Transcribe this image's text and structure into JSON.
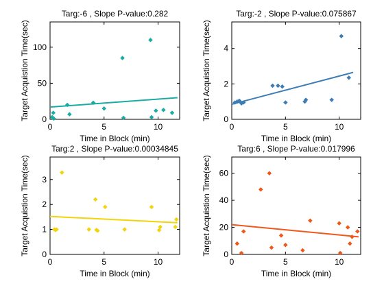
{
  "chart_data": [
    {
      "type": "scatter",
      "title": "Targ:-6 , Slope P-value:0.282",
      "xlabel": "Time in Block (min)",
      "ylabel": "Target Acquistion Time(sec)",
      "xlim": [
        0,
        12
      ],
      "ylim": [
        0,
        135
      ],
      "xticks": [
        0,
        5,
        10
      ],
      "yticks": [
        0,
        50,
        100
      ],
      "color": "#1aaba3",
      "marker": "diamond",
      "points": [
        {
          "x": 0.2,
          "y": 3
        },
        {
          "x": 0.3,
          "y": 9
        },
        {
          "x": 0.35,
          "y": 1
        },
        {
          "x": 1.6,
          "y": 20
        },
        {
          "x": 1.8,
          "y": 7
        },
        {
          "x": 4.0,
          "y": 23
        },
        {
          "x": 5.0,
          "y": 15
        },
        {
          "x": 6.7,
          "y": 85
        },
        {
          "x": 6.8,
          "y": 2
        },
        {
          "x": 9.3,
          "y": 110
        },
        {
          "x": 9.4,
          "y": 3
        },
        {
          "x": 9.8,
          "y": 12
        },
        {
          "x": 10.5,
          "y": 13
        },
        {
          "x": 11.3,
          "y": 9
        }
      ],
      "fit": {
        "x": [
          0,
          11.8
        ],
        "y": [
          17,
          30
        ]
      }
    },
    {
      "type": "scatter",
      "title": "Targ:-2 , Slope P-value:0.075867",
      "xlabel": "Time in Block (min)",
      "ylabel": "Target Acquistion Time(sec)",
      "xlim": [
        0,
        12
      ],
      "ylim": [
        0,
        5.5
      ],
      "xticks": [
        0,
        5,
        10
      ],
      "yticks": [
        0,
        2,
        4
      ],
      "color": "#3d7db4",
      "marker": "diamond",
      "points": [
        {
          "x": 0.3,
          "y": 0.95
        },
        {
          "x": 0.5,
          "y": 1.0
        },
        {
          "x": 0.7,
          "y": 1.05
        },
        {
          "x": 0.9,
          "y": 0.9
        },
        {
          "x": 1.1,
          "y": 0.95
        },
        {
          "x": 3.8,
          "y": 1.9
        },
        {
          "x": 4.3,
          "y": 1.9
        },
        {
          "x": 4.7,
          "y": 1.85
        },
        {
          "x": 5.0,
          "y": 0.95
        },
        {
          "x": 6.8,
          "y": 1.0
        },
        {
          "x": 6.9,
          "y": 1.1
        },
        {
          "x": 9.3,
          "y": 1.1
        },
        {
          "x": 10.2,
          "y": 4.7
        },
        {
          "x": 10.9,
          "y": 2.35
        }
      ],
      "fit": {
        "x": [
          0,
          11.3
        ],
        "y": [
          0.85,
          2.65
        ]
      }
    },
    {
      "type": "scatter",
      "title": "Targ:2 , Slope P-value:0.00034845",
      "xlabel": "Time in Block (min)",
      "ylabel": "Target Acquistion Time(sec)",
      "xlim": [
        0,
        12
      ],
      "ylim": [
        0,
        3.9
      ],
      "xticks": [
        0,
        5,
        10
      ],
      "yticks": [
        0,
        1,
        2,
        3
      ],
      "color": "#f2d40c",
      "marker": "diamond",
      "points": [
        {
          "x": 0.4,
          "y": 1.0
        },
        {
          "x": 0.5,
          "y": 0.98
        },
        {
          "x": 0.6,
          "y": 1.0
        },
        {
          "x": 1.1,
          "y": 3.28
        },
        {
          "x": 3.6,
          "y": 1.0
        },
        {
          "x": 4.2,
          "y": 2.2
        },
        {
          "x": 4.3,
          "y": 0.98
        },
        {
          "x": 4.4,
          "y": 0.95
        },
        {
          "x": 5.1,
          "y": 1.9
        },
        {
          "x": 6.9,
          "y": 1.0
        },
        {
          "x": 9.4,
          "y": 1.9
        },
        {
          "x": 10.1,
          "y": 0.97
        },
        {
          "x": 10.2,
          "y": 1.1
        },
        {
          "x": 11.6,
          "y": 1.1
        },
        {
          "x": 11.7,
          "y": 1.4
        }
      ],
      "fit": {
        "x": [
          0,
          11.8
        ],
        "y": [
          1.52,
          1.27
        ]
      }
    },
    {
      "type": "scatter",
      "title": "Targ:6 , Slope P-value:0.017996",
      "xlabel": "Time in Block (min)",
      "ylabel": "Target Acquistion Time(sec)",
      "xlim": [
        0,
        12
      ],
      "ylim": [
        0,
        72
      ],
      "xticks": [
        0,
        5,
        10
      ],
      "yticks": [
        0,
        20,
        40,
        60
      ],
      "color": "#f0571a",
      "marker": "diamond",
      "points": [
        {
          "x": 0.5,
          "y": 8
        },
        {
          "x": 0.9,
          "y": 1
        },
        {
          "x": 1.1,
          "y": 17
        },
        {
          "x": 2.7,
          "y": 48
        },
        {
          "x": 3.5,
          "y": 60
        },
        {
          "x": 3.7,
          "y": 5
        },
        {
          "x": 4.6,
          "y": 14
        },
        {
          "x": 5.0,
          "y": 7
        },
        {
          "x": 6.6,
          "y": 3
        },
        {
          "x": 7.3,
          "y": 25
        },
        {
          "x": 10.0,
          "y": 23
        },
        {
          "x": 10.1,
          "y": 1
        },
        {
          "x": 10.8,
          "y": 20
        },
        {
          "x": 11.0,
          "y": 8
        },
        {
          "x": 11.2,
          "y": 13
        },
        {
          "x": 11.7,
          "y": 17
        }
      ],
      "fit": {
        "x": [
          0,
          11.8
        ],
        "y": [
          22,
          13
        ]
      }
    }
  ]
}
